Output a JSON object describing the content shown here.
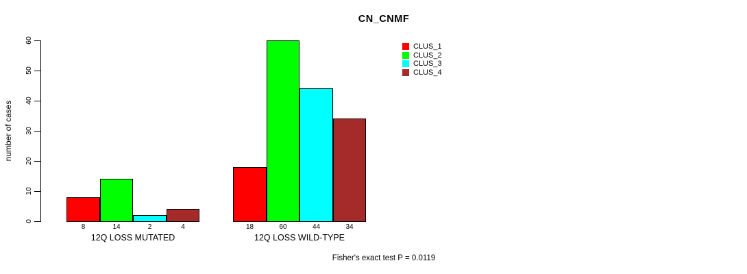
{
  "chart": {
    "title": "CN_CNMF",
    "ylabel": "number of cases",
    "footnote": "Fisher's exact test P = 0.0119"
  },
  "chart_data": {
    "type": "bar",
    "title": "CN_CNMF",
    "xlabel": "",
    "ylabel": "number of cases",
    "categories": [
      "12Q LOSS MUTATED",
      "12Q LOSS WILD-TYPE"
    ],
    "series": [
      {
        "name": "CLUS_1",
        "color": "#ff0000",
        "values": [
          8,
          18
        ]
      },
      {
        "name": "CLUS_2",
        "color": "#00ff00",
        "values": [
          14,
          60
        ]
      },
      {
        "name": "CLUS_3",
        "color": "#00ffff",
        "values": [
          2,
          44
        ]
      },
      {
        "name": "CLUS_4",
        "color": "#a52a2a",
        "values": [
          4,
          34
        ]
      }
    ],
    "bar_value_labels": [
      [
        8,
        14,
        2,
        4
      ],
      [
        18,
        60,
        44,
        34
      ]
    ],
    "yticks": [
      0,
      10,
      20,
      30,
      40,
      50,
      60
    ],
    "ylim": [
      0,
      60
    ],
    "grid": false,
    "legend_position": "top-right",
    "legend_entries": [
      {
        "label": "CLUS_1",
        "color": "#ff0000"
      },
      {
        "label": "CLUS_2",
        "color": "#00ff00"
      },
      {
        "label": "CLUS_3",
        "color": "#00ffff"
      },
      {
        "label": "CLUS_4",
        "color": "#a52a2a"
      }
    ],
    "annotation": "Fisher's exact test P = 0.0119"
  }
}
